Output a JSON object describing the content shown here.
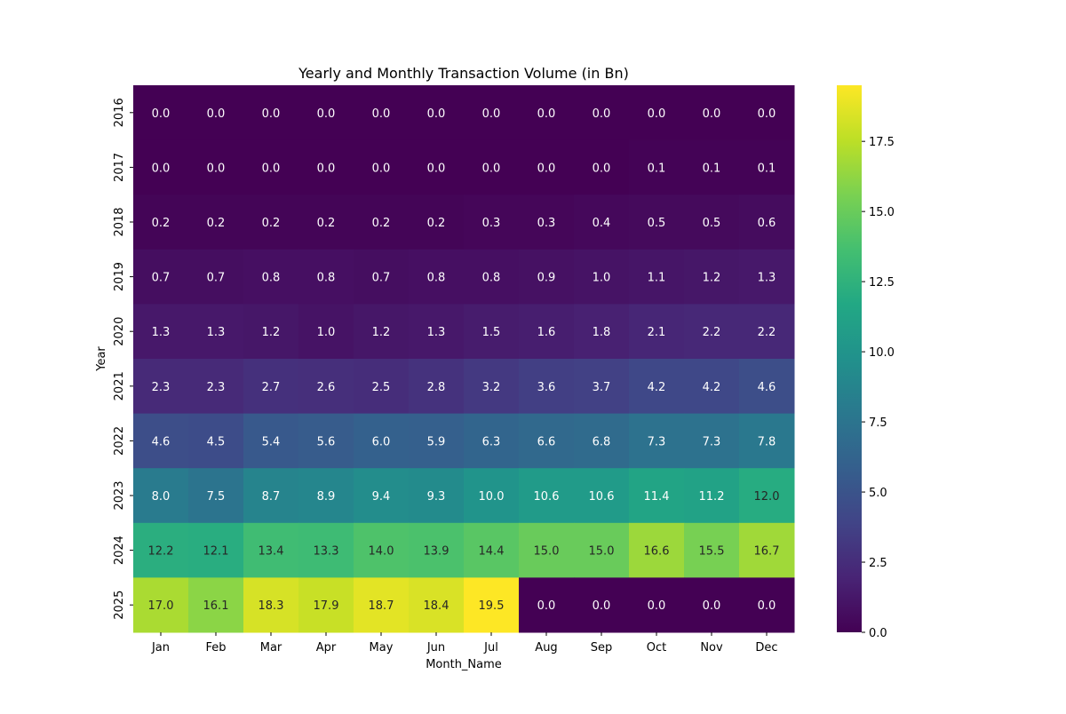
{
  "chart_data": {
    "type": "heatmap",
    "title": "Yearly and Monthly Transaction Volume (in Bn)",
    "xlabel": "Month_Name",
    "ylabel": "Year",
    "x_categories": [
      "Jan",
      "Feb",
      "Mar",
      "Apr",
      "May",
      "Jun",
      "Jul",
      "Aug",
      "Sep",
      "Oct",
      "Nov",
      "Dec"
    ],
    "y_categories": [
      "2016",
      "2017",
      "2018",
      "2019",
      "2020",
      "2021",
      "2022",
      "2023",
      "2024",
      "2025"
    ],
    "values": [
      [
        0.0,
        0.0,
        0.0,
        0.0,
        0.0,
        0.0,
        0.0,
        0.0,
        0.0,
        0.0,
        0.0,
        0.0
      ],
      [
        0.0,
        0.0,
        0.0,
        0.0,
        0.0,
        0.0,
        0.0,
        0.0,
        0.0,
        0.1,
        0.1,
        0.1
      ],
      [
        0.2,
        0.2,
        0.2,
        0.2,
        0.2,
        0.2,
        0.3,
        0.3,
        0.4,
        0.5,
        0.5,
        0.6
      ],
      [
        0.7,
        0.7,
        0.8,
        0.8,
        0.7,
        0.8,
        0.8,
        0.9,
        1.0,
        1.1,
        1.2,
        1.3
      ],
      [
        1.3,
        1.3,
        1.2,
        1.0,
        1.2,
        1.3,
        1.5,
        1.6,
        1.8,
        2.1,
        2.2,
        2.2
      ],
      [
        2.3,
        2.3,
        2.7,
        2.6,
        2.5,
        2.8,
        3.2,
        3.6,
        3.7,
        4.2,
        4.2,
        4.6
      ],
      [
        4.6,
        4.5,
        5.4,
        5.6,
        6.0,
        5.9,
        6.3,
        6.6,
        6.8,
        7.3,
        7.3,
        7.8
      ],
      [
        8.0,
        7.5,
        8.7,
        8.9,
        9.4,
        9.3,
        10.0,
        10.6,
        10.6,
        11.4,
        11.2,
        12.0
      ],
      [
        12.2,
        12.1,
        13.4,
        13.3,
        14.0,
        13.9,
        14.4,
        15.0,
        15.0,
        16.6,
        15.5,
        16.7
      ],
      [
        17.0,
        16.1,
        18.3,
        17.9,
        18.7,
        18.4,
        19.5,
        0.0,
        0.0,
        0.0,
        0.0,
        0.0
      ]
    ],
    "value_format_decimals": 1,
    "colormap": "viridis",
    "color_range": [
      0.0,
      19.5
    ],
    "colorbar_ticks": [
      "0.0",
      "2.5",
      "5.0",
      "7.5",
      "10.0",
      "12.5",
      "15.0",
      "17.5"
    ],
    "colorbar_tick_values": [
      0.0,
      2.5,
      5.0,
      7.5,
      10.0,
      12.5,
      15.0,
      17.5
    ],
    "grid": false,
    "colorbar_position": "right"
  }
}
